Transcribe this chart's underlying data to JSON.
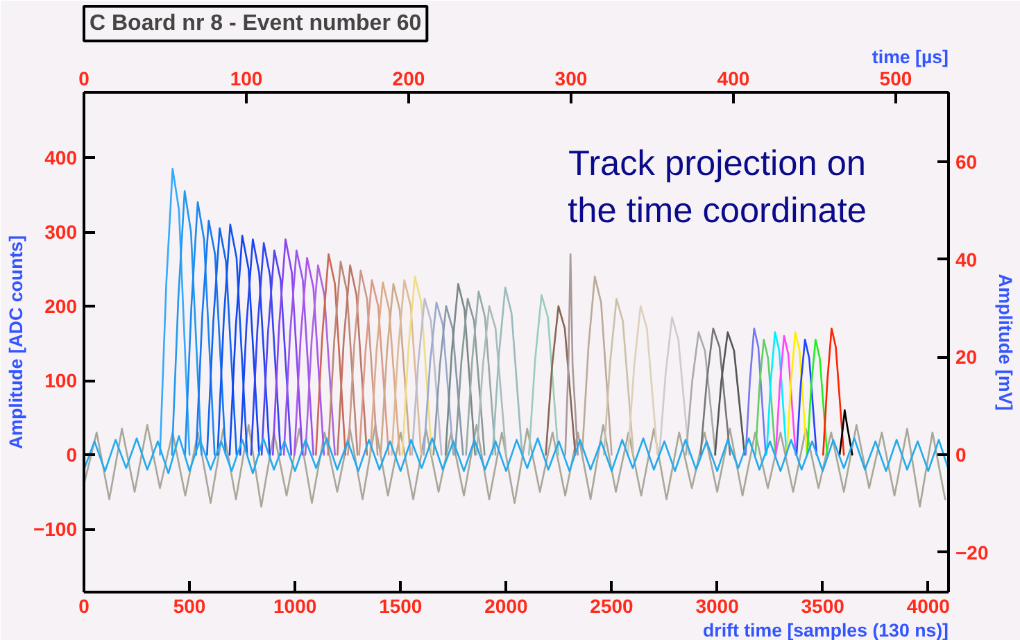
{
  "chart_data": {
    "type": "line",
    "title": "C Board nr 8 - Event number 60",
    "xlabel": "drift time [samples (130 ns)]",
    "ylabel": "Amplitude [ADC counts]",
    "y2label": "Amplitude [mV]",
    "x2label": "time [µs]",
    "xlim": [
      0,
      4096
    ],
    "xticks": [
      0,
      500,
      1000,
      1500,
      2000,
      2500,
      3000,
      3500,
      4000
    ],
    "ylim": [
      -185,
      488
    ],
    "yticks": [
      -100,
      0,
      100,
      200,
      300,
      400
    ],
    "y2lim": [
      -28.1,
      74.2
    ],
    "y2ticks": [
      -20,
      0,
      20,
      40,
      60
    ],
    "x2lim": [
      0,
      532.5
    ],
    "x2ticks": [
      0,
      100,
      200,
      300,
      400,
      500
    ],
    "grid": false,
    "marker": "none",
    "line_style": "solid",
    "annotations": [
      "Track projection on\nthe time coordinate"
    ],
    "series": [
      {
        "color": "#a8a89a",
        "x": [
          0,
          60,
          120,
          180,
          240,
          300,
          360,
          420,
          480,
          540,
          600,
          660,
          720,
          780,
          840,
          900,
          960,
          1020,
          1080,
          1140,
          1200,
          1260,
          1320,
          1380,
          1440,
          1500,
          1560,
          1620,
          1680,
          1740,
          1800,
          1860,
          1920,
          1980,
          2040,
          2100,
          2160,
          2220,
          2280,
          2340,
          2400,
          2460,
          2520,
          2580,
          2640,
          2700,
          2760,
          2820,
          2880,
          2940,
          3000,
          3060,
          3120,
          3180,
          3240,
          3300,
          3360,
          3420,
          3480,
          3540,
          3600,
          3660,
          3720,
          3780,
          3840,
          3900,
          3960,
          4020,
          4080
        ],
        "values": [
          -40,
          30,
          -60,
          35,
          -50,
          40,
          -45,
          30,
          -55,
          30,
          -65,
          35,
          -60,
          40,
          -70,
          30,
          -55,
          35,
          -65,
          30,
          -50,
          35,
          -60,
          40,
          -55,
          30,
          -60,
          35,
          -50,
          30,
          -55,
          40,
          -60,
          30,
          -65,
          35,
          -50,
          30,
          -55,
          30,
          -60,
          40,
          -50,
          30,
          -55,
          35,
          -60,
          30,
          -45,
          30,
          -50,
          35,
          -55,
          30,
          -45,
          30,
          -50,
          35,
          -45,
          30,
          -50,
          40,
          -45,
          30,
          -55,
          35,
          -70,
          30,
          -60
        ]
      },
      {
        "color": "#33aaff",
        "x": [
          360,
          390,
          420,
          450,
          500
        ],
        "values": [
          0,
          230,
          385,
          330,
          0
        ]
      },
      {
        "color": "#2299ee",
        "x": [
          417,
          447,
          477,
          507,
          557
        ],
        "values": [
          0,
          210,
          355,
          300,
          0
        ]
      },
      {
        "color": "#1e88ee",
        "x": [
          479,
          509,
          539,
          569,
          619
        ],
        "values": [
          0,
          200,
          340,
          290,
          0
        ]
      },
      {
        "color": "#1a77ee",
        "x": [
          531,
          561,
          591,
          621,
          671
        ],
        "values": [
          0,
          190,
          315,
          270,
          0
        ]
      },
      {
        "color": "#1166ee",
        "x": [
          583,
          613,
          643,
          673,
          723
        ],
        "values": [
          0,
          180,
          305,
          260,
          0
        ]
      },
      {
        "color": "#1155ee",
        "x": [
          633,
          663,
          693,
          723,
          773
        ],
        "values": [
          0,
          185,
          310,
          265,
          0
        ]
      },
      {
        "color": "#1144ee",
        "x": [
          690,
          720,
          750,
          780,
          830
        ],
        "values": [
          0,
          175,
          295,
          250,
          0
        ]
      },
      {
        "color": "#2244ee",
        "x": [
          740,
          770,
          800,
          830,
          880
        ],
        "values": [
          0,
          175,
          290,
          245,
          0
        ]
      },
      {
        "color": "#3344ee",
        "x": [
          792,
          822,
          852,
          882,
          932
        ],
        "values": [
          0,
          170,
          285,
          240,
          0
        ]
      },
      {
        "color": "#5544ee",
        "x": [
          842,
          872,
          902,
          932,
          982
        ],
        "values": [
          0,
          165,
          275,
          235,
          0
        ]
      },
      {
        "color": "#8844ee",
        "x": [
          895,
          925,
          955,
          985,
          1035
        ],
        "values": [
          0,
          175,
          290,
          245,
          0
        ]
      },
      {
        "color": "#9955ee",
        "x": [
          947,
          977,
          1007,
          1037,
          1087
        ],
        "values": [
          0,
          165,
          275,
          235,
          0
        ]
      },
      {
        "color": "#aa55ee",
        "x": [
          997,
          1027,
          1057,
          1087,
          1137
        ],
        "values": [
          0,
          160,
          265,
          225,
          0
        ]
      },
      {
        "color": "#aa66dd",
        "x": [
          1049,
          1079,
          1109,
          1139,
          1189
        ],
        "values": [
          0,
          155,
          255,
          215,
          0
        ]
      },
      {
        "color": "#cc6655",
        "x": [
          1099,
          1129,
          1159,
          1189,
          1239
        ],
        "values": [
          0,
          160,
          270,
          230,
          0
        ]
      },
      {
        "color": "#bb8877",
        "x": [
          1156,
          1186,
          1216,
          1246,
          1296
        ],
        "values": [
          0,
          155,
          260,
          220,
          0
        ]
      },
      {
        "color": "#bb7766",
        "x": [
          1201,
          1231,
          1261,
          1291,
          1341
        ],
        "values": [
          0,
          155,
          255,
          215,
          0
        ]
      },
      {
        "color": "#cc9988",
        "x": [
          1251,
          1281,
          1311,
          1341,
          1391
        ],
        "values": [
          0,
          150,
          248,
          210,
          0
        ]
      },
      {
        "color": "#dd9988",
        "x": [
          1304,
          1334,
          1364,
          1394,
          1444
        ],
        "values": [
          0,
          140,
          235,
          200,
          0
        ]
      },
      {
        "color": "#ddaa88",
        "x": [
          1356,
          1386,
          1416,
          1446,
          1496
        ],
        "values": [
          0,
          140,
          232,
          195,
          0
        ]
      },
      {
        "color": "#ccaa88",
        "x": [
          1406,
          1436,
          1466,
          1496,
          1546
        ],
        "values": [
          0,
          140,
          230,
          195,
          0
        ]
      },
      {
        "color": "#ddbb99",
        "x": [
          1458,
          1488,
          1518,
          1548,
          1598
        ],
        "values": [
          0,
          140,
          235,
          200,
          0
        ]
      },
      {
        "color": "#eedd88",
        "x": [
          1508,
          1538,
          1568,
          1598,
          1648
        ],
        "values": [
          0,
          145,
          240,
          205,
          0
        ]
      },
      {
        "color": "#bbbbcc",
        "x": [
          1554,
          1584,
          1614,
          1644,
          1694
        ],
        "values": [
          0,
          125,
          210,
          180,
          0
        ]
      },
      {
        "color": "#99aacc",
        "x": [
          1610,
          1640,
          1670,
          1700,
          1750
        ],
        "values": [
          0,
          125,
          205,
          175,
          0
        ]
      },
      {
        "color": "#8899aa",
        "x": [
          1656,
          1686,
          1716,
          1746,
          1796
        ],
        "values": [
          0,
          120,
          200,
          170,
          0
        ]
      },
      {
        "color": "#778888",
        "x": [
          1713,
          1743,
          1773,
          1803,
          1853
        ],
        "values": [
          0,
          140,
          230,
          195,
          0
        ]
      },
      {
        "color": "#889999",
        "x": [
          1758,
          1788,
          1818,
          1848,
          1898
        ],
        "values": [
          0,
          125,
          210,
          180,
          0
        ]
      },
      {
        "color": "#99aaaa",
        "x": [
          1810,
          1840,
          1870,
          1900,
          1950
        ],
        "values": [
          0,
          130,
          220,
          185,
          0
        ]
      },
      {
        "color": "#aabbbb",
        "x": [
          1860,
          1890,
          1920,
          1950,
          2000
        ],
        "values": [
          0,
          120,
          200,
          170,
          0
        ]
      },
      {
        "color": "#99bbbb",
        "x": [
          1936,
          1966,
          1996,
          2026,
          2076
        ],
        "values": [
          0,
          135,
          225,
          190,
          0
        ]
      },
      {
        "color": "#99ccbb",
        "x": [
          2108,
          2138,
          2168,
          2198,
          2248
        ],
        "values": [
          0,
          130,
          215,
          185,
          0
        ]
      },
      {
        "color": "#886655",
        "x": [
          2188,
          2218,
          2248,
          2278,
          2328
        ],
        "values": [
          0,
          120,
          200,
          170,
          0
        ]
      },
      {
        "color": "#aa9999",
        "x": [
          2280,
          2295,
          2305,
          2315,
          2340
        ],
        "values": [
          0,
          120,
          270,
          120,
          0
        ]
      },
      {
        "color": "#bbaa99",
        "x": [
          2360,
          2390,
          2420,
          2450,
          2500
        ],
        "values": [
          0,
          145,
          240,
          205,
          0
        ]
      },
      {
        "color": "#ccc0aa",
        "x": [
          2463,
          2493,
          2523,
          2553,
          2603
        ],
        "values": [
          0,
          125,
          210,
          180,
          0
        ]
      },
      {
        "color": "#ddd0bb",
        "x": [
          2577,
          2607,
          2637,
          2667,
          2717
        ],
        "values": [
          0,
          120,
          200,
          170,
          0
        ]
      },
      {
        "color": "#cccccc",
        "x": [
          2726,
          2756,
          2786,
          2816,
          2866
        ],
        "values": [
          0,
          110,
          185,
          155,
          0
        ]
      },
      {
        "color": "#aaaaaa",
        "x": [
          2852,
          2882,
          2912,
          2942,
          2992
        ],
        "values": [
          0,
          100,
          165,
          140,
          0
        ]
      },
      {
        "color": "#777777",
        "x": [
          2921,
          2951,
          2981,
          3011,
          3061
        ],
        "values": [
          0,
          100,
          170,
          145,
          0
        ]
      },
      {
        "color": "#555555",
        "x": [
          2990,
          3020,
          3050,
          3080,
          3130
        ],
        "values": [
          0,
          100,
          165,
          140,
          0
        ]
      },
      {
        "color": "#7777ee",
        "x": [
          3135,
          3155,
          3175,
          3195,
          3230
        ],
        "values": [
          0,
          100,
          170,
          145,
          0
        ]
      },
      {
        "color": "#66cc66",
        "x": [
          3181,
          3201,
          3221,
          3241,
          3276
        ],
        "values": [
          0,
          95,
          155,
          130,
          0
        ]
      },
      {
        "color": "#00eeff",
        "x": [
          3234,
          3254,
          3274,
          3294,
          3329
        ],
        "values": [
          0,
          100,
          165,
          140,
          0
        ]
      },
      {
        "color": "#ff44ff",
        "x": [
          3277,
          3297,
          3317,
          3337,
          3372
        ],
        "values": [
          0,
          95,
          160,
          135,
          0
        ]
      },
      {
        "color": "#ffee00",
        "x": [
          3330,
          3350,
          3370,
          3390,
          3425
        ],
        "values": [
          0,
          100,
          165,
          140,
          0
        ]
      },
      {
        "color": "#2244ff",
        "x": [
          3376,
          3396,
          3416,
          3436,
          3471
        ],
        "values": [
          0,
          95,
          155,
          130,
          0
        ]
      },
      {
        "color": "#22ee22",
        "x": [
          3426,
          3446,
          3466,
          3486,
          3521
        ],
        "values": [
          0,
          95,
          155,
          130,
          0
        ]
      },
      {
        "color": "#ff2200",
        "x": [
          3502,
          3522,
          3542,
          3562,
          3600
        ],
        "values": [
          0,
          100,
          170,
          145,
          0
        ]
      },
      {
        "color": "#000000",
        "x": [
          3580,
          3595,
          3604,
          3615,
          3640
        ],
        "values": [
          0,
          35,
          60,
          40,
          0
        ]
      },
      {
        "color": "#22aaee",
        "x": [
          0,
          50,
          100,
          150,
          200,
          250,
          300,
          350,
          400,
          450,
          500,
          550,
          600,
          650,
          700,
          750,
          800,
          850,
          900,
          950,
          1000,
          1050,
          1100,
          1150,
          1200,
          1250,
          1300,
          1350,
          1400,
          1450,
          1500,
          1550,
          1600,
          1650,
          1700,
          1750,
          1800,
          1850,
          1900,
          1950,
          2000,
          2050,
          2100,
          2150,
          2200,
          2250,
          2300,
          2350,
          2400,
          2450,
          2500,
          2550,
          2600,
          2650,
          2700,
          2750,
          2800,
          2850,
          2900,
          2950,
          3000,
          3050,
          3100,
          3150,
          3200,
          3250,
          3300,
          3350,
          3400,
          3450,
          3500,
          3550,
          3600,
          3650,
          3700,
          3750,
          3800,
          3850,
          3900,
          3950,
          4000,
          4050,
          4096
        ],
        "values": [
          -20,
          18,
          -22,
          20,
          -18,
          22,
          -20,
          18,
          -25,
          25,
          -22,
          20,
          -20,
          18,
          -22,
          20,
          -25,
          22,
          -20,
          18,
          -22,
          20,
          -18,
          22,
          -20,
          18,
          -22,
          20,
          -20,
          18,
          -22,
          20,
          -18,
          22,
          -20,
          18,
          -22,
          20,
          -20,
          18,
          -22,
          20,
          -18,
          22,
          -20,
          18,
          -22,
          20,
          -20,
          18,
          -22,
          20,
          -18,
          22,
          -20,
          18,
          -22,
          20,
          -20,
          18,
          -22,
          20,
          -18,
          22,
          -20,
          18,
          -22,
          20,
          -20,
          18,
          -22,
          20,
          -18,
          22,
          -20,
          18,
          -22,
          20,
          -20,
          18,
          -22,
          20,
          -20
        ]
      }
    ]
  }
}
